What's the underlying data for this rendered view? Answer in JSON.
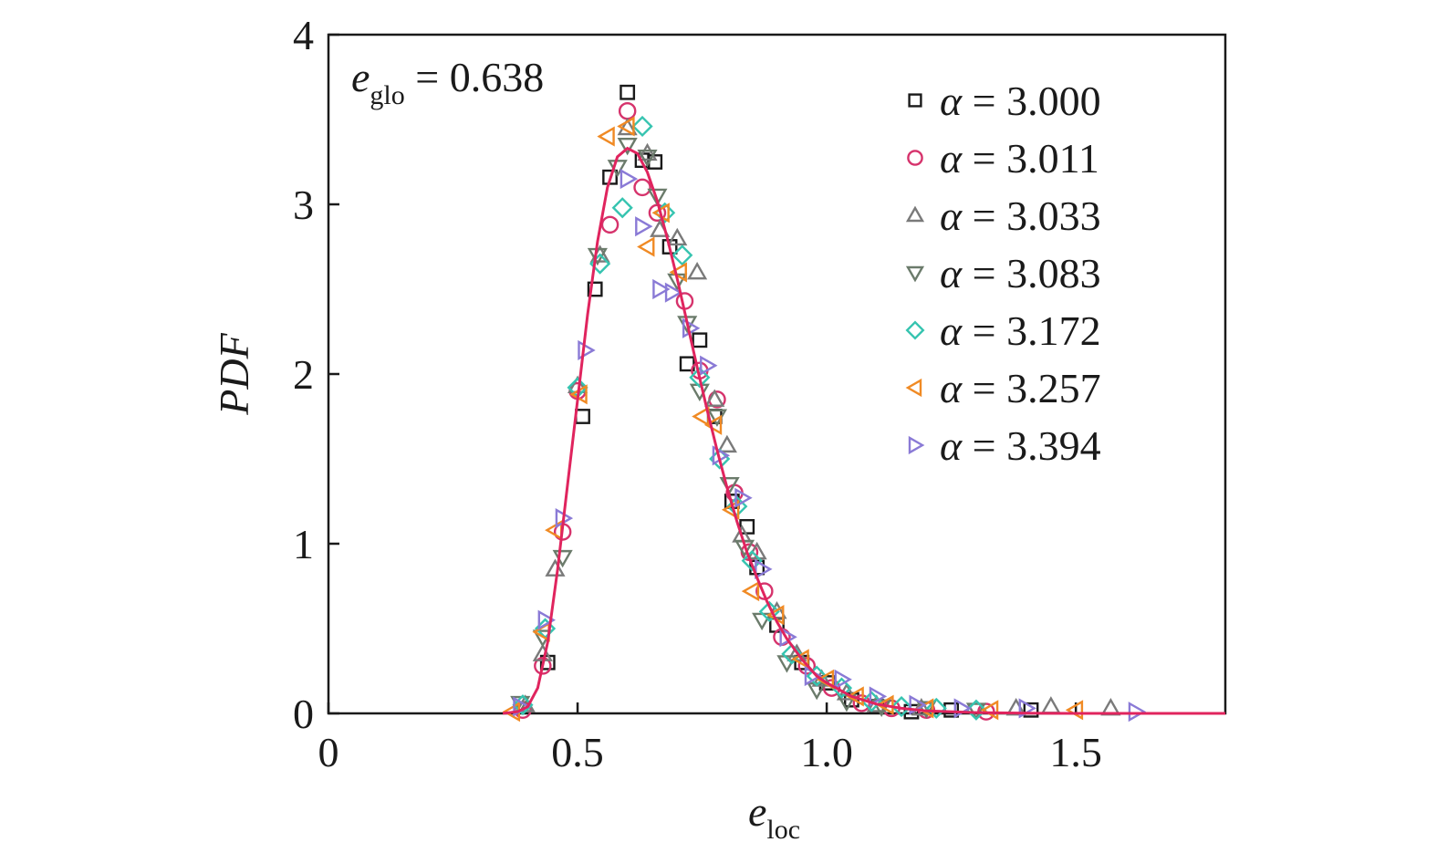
{
  "chart_data": {
    "type": "scatter",
    "xlabel": {
      "main": "e",
      "sub": "loc"
    },
    "ylabel": "PDF",
    "xlim": [
      0,
      1.8
    ],
    "ylim": [
      0,
      4
    ],
    "xticks": [
      {
        "value": 0,
        "label": "0"
      },
      {
        "value": 0.5,
        "label": "0.5"
      },
      {
        "value": 1.0,
        "label": "1.0"
      },
      {
        "value": 1.5,
        "label": "1.5"
      }
    ],
    "yticks": [
      {
        "value": 0,
        "label": "0"
      },
      {
        "value": 1,
        "label": "1"
      },
      {
        "value": 2,
        "label": "2"
      },
      {
        "value": 3,
        "label": "3"
      },
      {
        "value": 4,
        "label": "4"
      }
    ],
    "grid": false,
    "legend_position": "top-right",
    "annotation": {
      "main": "e",
      "sub": "glo",
      "rest": " = 0.638"
    },
    "series": [
      {
        "name": "α = 3.000",
        "alpha_value": "3.000",
        "marker": "square",
        "color": "#1a1a1a",
        "points": [
          [
            0.44,
            0.3
          ],
          [
            0.51,
            1.75
          ],
          [
            0.535,
            2.5
          ],
          [
            0.565,
            3.16
          ],
          [
            0.6,
            3.66
          ],
          [
            0.63,
            3.26
          ],
          [
            0.655,
            3.25
          ],
          [
            0.685,
            2.75
          ],
          [
            0.72,
            2.06
          ],
          [
            0.745,
            2.2
          ],
          [
            0.775,
            1.75
          ],
          [
            0.81,
            1.25
          ],
          [
            0.84,
            1.1
          ],
          [
            0.86,
            0.86
          ],
          [
            0.9,
            0.52
          ],
          [
            0.95,
            0.3
          ],
          [
            1.0,
            0.18
          ],
          [
            1.05,
            0.08
          ],
          [
            1.1,
            0.04
          ],
          [
            1.17,
            0.01
          ],
          [
            1.25,
            0.02
          ],
          [
            1.41,
            0.02
          ]
        ]
      },
      {
        "name": "α = 3.011",
        "alpha_value": "3.011",
        "marker": "circle",
        "color": "#d6336c",
        "points": [
          [
            0.39,
            0.02
          ],
          [
            0.43,
            0.28
          ],
          [
            0.47,
            1.07
          ],
          [
            0.5,
            1.9
          ],
          [
            0.565,
            2.88
          ],
          [
            0.6,
            3.55
          ],
          [
            0.63,
            3.1
          ],
          [
            0.66,
            2.95
          ],
          [
            0.715,
            2.43
          ],
          [
            0.745,
            2.02
          ],
          [
            0.78,
            1.85
          ],
          [
            0.815,
            1.3
          ],
          [
            0.845,
            0.95
          ],
          [
            0.875,
            0.72
          ],
          [
            0.91,
            0.45
          ],
          [
            0.96,
            0.28
          ],
          [
            1.01,
            0.15
          ],
          [
            1.07,
            0.06
          ],
          [
            1.13,
            0.03
          ],
          [
            1.2,
            0.02
          ],
          [
            1.32,
            0.01
          ]
        ]
      },
      {
        "name": "α = 3.033",
        "alpha_value": "3.033",
        "marker": "triangle-up",
        "color": "#7a7a7a",
        "points": [
          [
            0.395,
            0.05
          ],
          [
            0.43,
            0.35
          ],
          [
            0.455,
            0.85
          ],
          [
            0.5,
            1.93
          ],
          [
            0.545,
            2.7
          ],
          [
            0.6,
            3.45
          ],
          [
            0.64,
            3.3
          ],
          [
            0.665,
            2.85
          ],
          [
            0.7,
            2.8
          ],
          [
            0.74,
            2.6
          ],
          [
            0.775,
            1.85
          ],
          [
            0.8,
            1.58
          ],
          [
            0.83,
            1.05
          ],
          [
            0.86,
            0.95
          ],
          [
            0.9,
            0.6
          ],
          [
            0.94,
            0.35
          ],
          [
            0.99,
            0.2
          ],
          [
            1.04,
            0.12
          ],
          [
            1.1,
            0.05
          ],
          [
            1.19,
            0.03
          ],
          [
            1.38,
            0.03
          ],
          [
            1.45,
            0.04
          ],
          [
            1.57,
            0.03
          ]
        ]
      },
      {
        "name": "α = 3.083",
        "alpha_value": "3.083",
        "marker": "triangle-down",
        "color": "#6b7b6b",
        "points": [
          [
            0.385,
            0.06
          ],
          [
            0.43,
            0.45
          ],
          [
            0.47,
            0.92
          ],
          [
            0.54,
            2.7
          ],
          [
            0.58,
            3.22
          ],
          [
            0.6,
            3.35
          ],
          [
            0.64,
            3.28
          ],
          [
            0.66,
            3.05
          ],
          [
            0.7,
            2.55
          ],
          [
            0.72,
            2.3
          ],
          [
            0.745,
            1.9
          ],
          [
            0.78,
            1.75
          ],
          [
            0.805,
            1.35
          ],
          [
            0.835,
            0.98
          ],
          [
            0.87,
            0.55
          ],
          [
            0.92,
            0.3
          ],
          [
            0.98,
            0.14
          ],
          [
            1.04,
            0.07
          ],
          [
            1.11,
            0.04
          ],
          [
            1.2,
            0.03
          ],
          [
            1.3,
            0.02
          ]
        ]
      },
      {
        "name": "α = 3.172",
        "alpha_value": "3.172",
        "marker": "diamond",
        "color": "#36c4b0",
        "points": [
          [
            0.39,
            0.05
          ],
          [
            0.435,
            0.5
          ],
          [
            0.5,
            1.92
          ],
          [
            0.545,
            2.65
          ],
          [
            0.59,
            2.98
          ],
          [
            0.63,
            3.46
          ],
          [
            0.675,
            2.95
          ],
          [
            0.71,
            2.7
          ],
          [
            0.745,
            1.98
          ],
          [
            0.785,
            1.5
          ],
          [
            0.82,
            1.22
          ],
          [
            0.85,
            0.9
          ],
          [
            0.885,
            0.6
          ],
          [
            0.93,
            0.35
          ],
          [
            0.98,
            0.22
          ],
          [
            1.03,
            0.15
          ],
          [
            1.09,
            0.07
          ],
          [
            1.15,
            0.04
          ],
          [
            1.22,
            0.03
          ],
          [
            1.3,
            0.02
          ]
        ]
      },
      {
        "name": "α = 3.257",
        "alpha_value": "3.257",
        "marker": "triangle-left",
        "color": "#f08a24",
        "points": [
          [
            0.37,
            0.01
          ],
          [
            0.43,
            0.48
          ],
          [
            0.455,
            1.08
          ],
          [
            0.505,
            1.88
          ],
          [
            0.56,
            3.4
          ],
          [
            0.6,
            3.46
          ],
          [
            0.64,
            2.75
          ],
          [
            0.67,
            2.95
          ],
          [
            0.705,
            2.6
          ],
          [
            0.75,
            1.75
          ],
          [
            0.775,
            1.7
          ],
          [
            0.81,
            1.2
          ],
          [
            0.85,
            0.72
          ],
          [
            0.9,
            0.58
          ],
          [
            0.95,
            0.32
          ],
          [
            1.0,
            0.2
          ],
          [
            1.06,
            0.1
          ],
          [
            1.12,
            0.05
          ],
          [
            1.2,
            0.03
          ],
          [
            1.33,
            0.02
          ],
          [
            1.5,
            0.02
          ]
        ]
      },
      {
        "name": "α = 3.394",
        "alpha_value": "3.394",
        "marker": "triangle-right",
        "color": "#8a7ad6",
        "points": [
          [
            0.385,
            0.04
          ],
          [
            0.435,
            0.55
          ],
          [
            0.47,
            1.15
          ],
          [
            0.515,
            2.14
          ],
          [
            0.6,
            3.15
          ],
          [
            0.63,
            2.87
          ],
          [
            0.665,
            2.5
          ],
          [
            0.69,
            2.48
          ],
          [
            0.725,
            2.27
          ],
          [
            0.76,
            2.05
          ],
          [
            0.785,
            1.52
          ],
          [
            0.83,
            1.27
          ],
          [
            0.87,
            0.85
          ],
          [
            0.92,
            0.45
          ],
          [
            0.97,
            0.22
          ],
          [
            1.03,
            0.2
          ],
          [
            1.1,
            0.1
          ],
          [
            1.18,
            0.05
          ],
          [
            1.27,
            0.03
          ],
          [
            1.4,
            0.03
          ],
          [
            1.62,
            0.01
          ]
        ]
      }
    ],
    "fit_curve": {
      "color": "#e0245e",
      "points": [
        [
          0.35,
          0.0
        ],
        [
          0.38,
          0.01
        ],
        [
          0.4,
          0.04
        ],
        [
          0.42,
          0.15
        ],
        [
          0.44,
          0.42
        ],
        [
          0.46,
          0.85
        ],
        [
          0.48,
          1.35
        ],
        [
          0.5,
          1.85
        ],
        [
          0.52,
          2.35
        ],
        [
          0.54,
          2.78
        ],
        [
          0.56,
          3.1
        ],
        [
          0.58,
          3.28
        ],
        [
          0.6,
          3.33
        ],
        [
          0.62,
          3.3
        ],
        [
          0.64,
          3.19
        ],
        [
          0.66,
          3.02
        ],
        [
          0.68,
          2.8
        ],
        [
          0.7,
          2.56
        ],
        [
          0.72,
          2.3
        ],
        [
          0.74,
          2.04
        ],
        [
          0.76,
          1.79
        ],
        [
          0.78,
          1.55
        ],
        [
          0.8,
          1.33
        ],
        [
          0.82,
          1.13
        ],
        [
          0.84,
          0.95
        ],
        [
          0.86,
          0.8
        ],
        [
          0.88,
          0.66
        ],
        [
          0.9,
          0.54
        ],
        [
          0.92,
          0.44
        ],
        [
          0.95,
          0.32
        ],
        [
          0.98,
          0.22
        ],
        [
          1.0,
          0.18
        ],
        [
          1.05,
          0.1
        ],
        [
          1.1,
          0.055
        ],
        [
          1.15,
          0.03
        ],
        [
          1.2,
          0.015
        ],
        [
          1.3,
          0.005
        ],
        [
          1.4,
          0.001
        ],
        [
          1.5,
          0.0
        ],
        [
          1.8,
          0.0
        ]
      ]
    }
  }
}
